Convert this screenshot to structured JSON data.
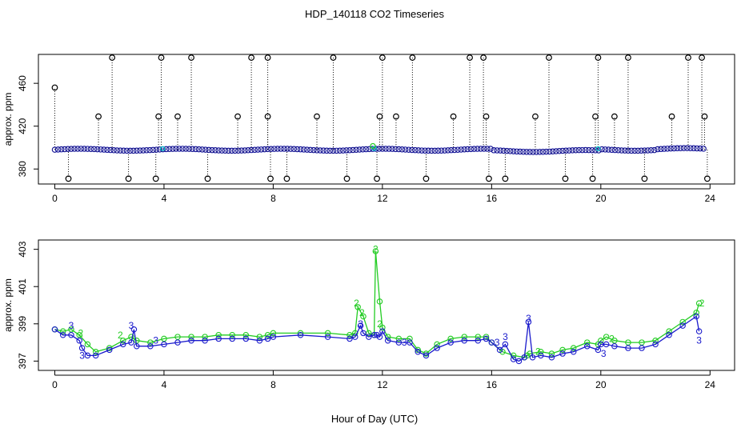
{
  "title": "HDP_140118  CO2 Timeseries",
  "xlabel": "Hour of Day (UTC)",
  "colors": {
    "raw": "#000000",
    "series2": "#22cc22",
    "series3": "#1a1acc",
    "highlight": "#00cccc"
  },
  "chart_data": [
    {
      "type": "scatter",
      "ylabel": "approx. ppm",
      "xlim": [
        -0.6,
        24.9
      ],
      "ylim": [
        366,
        487
      ],
      "xticks": [
        0,
        4,
        8,
        12,
        16,
        20,
        24
      ],
      "xtick_labels": [
        "0",
        "4",
        "8",
        "12",
        "16",
        "20",
        "24"
      ],
      "yticks": [
        380,
        420,
        460
      ],
      "ytick_labels": [
        "380",
        "420",
        "460"
      ],
      "baseline": 398,
      "spikes": [
        {
          "x": 0.0,
          "y": 456
        },
        {
          "x": 0.5,
          "y": 371
        },
        {
          "x": 1.6,
          "y": 429
        },
        {
          "x": 2.1,
          "y": 484
        },
        {
          "x": 2.7,
          "y": 371
        },
        {
          "x": 3.7,
          "y": 371
        },
        {
          "x": 3.8,
          "y": 429
        },
        {
          "x": 3.9,
          "y": 484
        },
        {
          "x": 4.5,
          "y": 429
        },
        {
          "x": 5.0,
          "y": 484
        },
        {
          "x": 5.6,
          "y": 371
        },
        {
          "x": 6.7,
          "y": 429
        },
        {
          "x": 7.2,
          "y": 484
        },
        {
          "x": 7.8,
          "y": 484
        },
        {
          "x": 7.8,
          "y": 429
        },
        {
          "x": 7.9,
          "y": 371
        },
        {
          "x": 8.5,
          "y": 371
        },
        {
          "x": 9.6,
          "y": 429
        },
        {
          "x": 10.2,
          "y": 484
        },
        {
          "x": 10.7,
          "y": 371
        },
        {
          "x": 11.8,
          "y": 371
        },
        {
          "x": 11.9,
          "y": 429
        },
        {
          "x": 12.0,
          "y": 484
        },
        {
          "x": 12.5,
          "y": 429
        },
        {
          "x": 13.1,
          "y": 484
        },
        {
          "x": 13.6,
          "y": 371
        },
        {
          "x": 14.6,
          "y": 429
        },
        {
          "x": 15.2,
          "y": 484
        },
        {
          "x": 15.7,
          "y": 484
        },
        {
          "x": 15.8,
          "y": 429
        },
        {
          "x": 15.9,
          "y": 371
        },
        {
          "x": 16.5,
          "y": 371
        },
        {
          "x": 17.6,
          "y": 429
        },
        {
          "x": 18.1,
          "y": 484
        },
        {
          "x": 18.7,
          "y": 371
        },
        {
          "x": 19.7,
          "y": 371
        },
        {
          "x": 19.8,
          "y": 429
        },
        {
          "x": 19.9,
          "y": 484
        },
        {
          "x": 20.5,
          "y": 429
        },
        {
          "x": 21.0,
          "y": 484
        },
        {
          "x": 21.6,
          "y": 371
        },
        {
          "x": 22.6,
          "y": 429
        },
        {
          "x": 23.2,
          "y": 484
        },
        {
          "x": 23.7,
          "y": 484
        },
        {
          "x": 23.8,
          "y": 429
        },
        {
          "x": 23.9,
          "y": 371
        }
      ]
    },
    {
      "type": "line",
      "ylabel": "approx. ppm",
      "xlim": [
        -0.6,
        24.9
      ],
      "ylim": [
        396.5,
        403.5
      ],
      "xticks": [
        0,
        4,
        8,
        12,
        16,
        20,
        24
      ],
      "xtick_labels": [
        "0",
        "4",
        "8",
        "12",
        "16",
        "20",
        "24"
      ],
      "yticks": [
        397,
        399,
        401,
        403
      ],
      "ytick_labels": [
        "397",
        "399",
        "401",
        "403"
      ],
      "series": [
        {
          "marker": "2",
          "x": [
            0.0,
            0.3,
            0.6,
            0.9,
            1.2,
            1.5,
            2.0,
            2.5,
            2.8,
            3.0,
            3.5,
            4.0,
            4.5,
            5.0,
            5.5,
            6.0,
            6.5,
            7.0,
            7.5,
            7.8,
            8.0,
            9.0,
            10.0,
            10.8,
            11.0,
            11.1,
            11.3,
            11.5,
            11.7,
            11.75,
            11.9,
            12.0,
            12.2,
            12.6,
            13.0,
            13.3,
            13.6,
            14.0,
            14.5,
            15.0,
            15.5,
            15.8,
            16.0,
            16.4,
            16.8,
            17.2,
            17.3,
            17.4,
            17.8,
            18.2,
            18.6,
            19.0,
            19.5,
            19.9,
            20.0,
            20.2,
            20.5,
            21.0,
            21.5,
            22.0,
            22.5,
            23.0,
            23.5,
            23.6
          ],
          "y": [
            398.7,
            398.6,
            398.7,
            398.4,
            397.9,
            397.5,
            397.7,
            398.1,
            398.3,
            398.1,
            398.0,
            398.2,
            398.3,
            398.3,
            398.3,
            398.4,
            398.4,
            398.4,
            398.3,
            398.4,
            398.5,
            398.5,
            398.5,
            398.4,
            398.5,
            399.9,
            399.4,
            398.5,
            398.4,
            402.9,
            400.2,
            398.8,
            398.3,
            398.2,
            398.2,
            397.6,
            397.4,
            397.9,
            398.2,
            398.3,
            398.3,
            398.3,
            398.0,
            397.5,
            397.3,
            397.2,
            397.3,
            397.4,
            397.5,
            397.4,
            397.6,
            397.7,
            398.0,
            397.9,
            398.1,
            398.3,
            398.1,
            398.0,
            398.0,
            398.1,
            398.6,
            399.1,
            399.6,
            400.1
          ]
        },
        {
          "marker": "3",
          "x": [
            0.0,
            0.3,
            0.6,
            0.9,
            1.0,
            1.2,
            1.5,
            2.0,
            2.5,
            2.8,
            2.9,
            3.0,
            3.5,
            4.0,
            4.5,
            5.0,
            5.5,
            6.0,
            6.5,
            7.0,
            7.5,
            7.8,
            8.0,
            9.0,
            10.0,
            10.8,
            11.0,
            11.2,
            11.3,
            11.5,
            11.7,
            11.8,
            11.9,
            12.0,
            12.2,
            12.6,
            13.0,
            13.3,
            13.6,
            14.0,
            14.5,
            15.0,
            15.5,
            15.8,
            16.0,
            16.3,
            16.5,
            16.8,
            17.0,
            17.2,
            17.35,
            17.5,
            17.8,
            18.2,
            18.6,
            19.0,
            19.5,
            19.9,
            20.0,
            20.2,
            20.5,
            21.0,
            21.5,
            22.0,
            22.5,
            23.0,
            23.5,
            23.6
          ],
          "y": [
            398.7,
            398.4,
            398.4,
            398.1,
            397.7,
            397.3,
            397.3,
            397.6,
            397.9,
            398.0,
            398.7,
            397.8,
            397.8,
            397.9,
            398.0,
            398.1,
            398.1,
            398.2,
            398.2,
            398.2,
            398.1,
            398.2,
            398.3,
            398.4,
            398.3,
            398.2,
            398.3,
            398.9,
            398.5,
            398.3,
            398.4,
            398.4,
            398.3,
            398.6,
            398.1,
            398.0,
            398.0,
            397.5,
            397.3,
            397.7,
            398.0,
            398.1,
            398.1,
            398.2,
            398.0,
            397.6,
            397.9,
            397.1,
            397.0,
            397.2,
            399.1,
            397.2,
            397.3,
            397.2,
            397.4,
            397.5,
            397.8,
            397.6,
            397.9,
            397.9,
            397.8,
            397.7,
            397.7,
            397.9,
            398.4,
            398.9,
            399.4,
            398.6
          ]
        }
      ]
    }
  ]
}
